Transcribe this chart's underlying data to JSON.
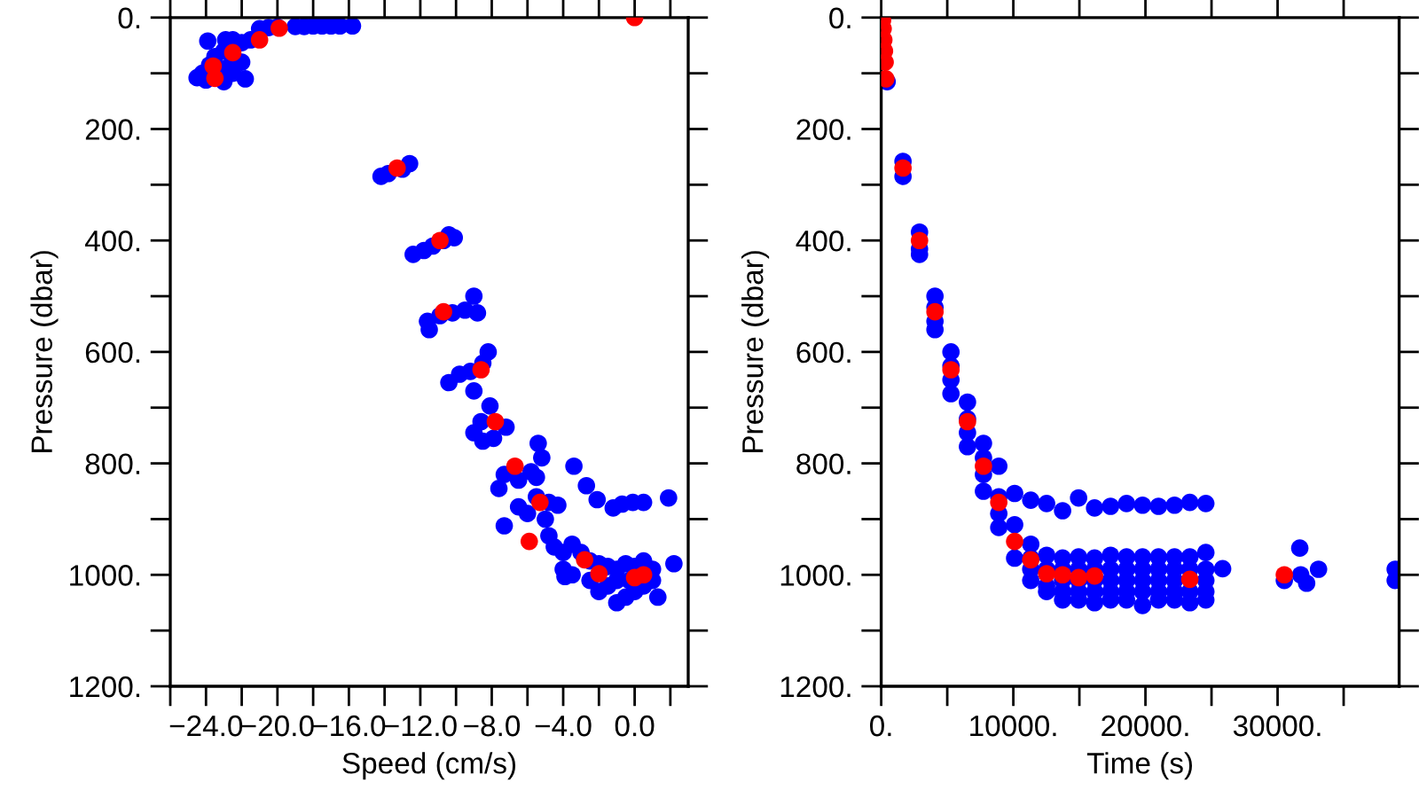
{
  "chart_data": [
    {
      "type": "scatter",
      "xlabel": "Speed (cm/s)",
      "ylabel": "Pressure (dbar)",
      "xlim": [
        -26,
        3
      ],
      "ylim": [
        1200,
        0
      ],
      "marker": "circle",
      "grid": false,
      "xticks": [
        {
          "value": -26,
          "label": null
        },
        {
          "value": -24,
          "label": "−24.0"
        },
        {
          "value": -22,
          "label": null
        },
        {
          "value": -20,
          "label": "−20.0"
        },
        {
          "value": -18,
          "label": null
        },
        {
          "value": -16,
          "label": "−16.0"
        },
        {
          "value": -14,
          "label": null
        },
        {
          "value": -12,
          "label": "−12.0"
        },
        {
          "value": -10,
          "label": null
        },
        {
          "value": -8,
          "label": "−8.0"
        },
        {
          "value": -6,
          "label": null
        },
        {
          "value": -4,
          "label": "−4.0"
        },
        {
          "value": -2,
          "label": null
        },
        {
          "value": 0,
          "label": "0.0"
        },
        {
          "value": 2,
          "label": null
        }
      ],
      "yticks": [
        {
          "value": 0,
          "label": "0."
        },
        {
          "value": 100,
          "label": null
        },
        {
          "value": 200,
          "label": "200."
        },
        {
          "value": 300,
          "label": null
        },
        {
          "value": 400,
          "label": "400."
        },
        {
          "value": 500,
          "label": null
        },
        {
          "value": 600,
          "label": "600."
        },
        {
          "value": 700,
          "label": null
        },
        {
          "value": 800,
          "label": "800."
        },
        {
          "value": 900,
          "label": null
        },
        {
          "value": 1000,
          "label": "1000."
        },
        {
          "value": 1100,
          "label": null
        },
        {
          "value": 1200,
          "label": "1200."
        }
      ],
      "series": [
        {
          "color": "#0000ff",
          "x": [
            -21,
            -20.5,
            -20,
            -19,
            -18.5,
            -18,
            -17.5,
            -17,
            -16.5,
            -15.8,
            -24.5,
            -24,
            -23.8,
            -23,
            -22.9,
            -22.5,
            -22,
            -22,
            -22.5,
            -23,
            -21.8,
            -23.5,
            -22.8,
            -24.2,
            -21.5,
            -23.9,
            -14.2,
            -13.8,
            -13,
            -12.6,
            -12.4,
            -11.8,
            -11.3,
            -10.7,
            -10.4,
            -10.1,
            -11.6,
            -11.5,
            -10.9,
            -10.2,
            -9.5,
            -9.0,
            -8.8,
            -10.4,
            -9.8,
            -9.2,
            -9.0,
            -8.5,
            -8.2,
            -9.0,
            -8.6,
            -8.1,
            -7.9,
            -7.2,
            -8.5,
            -7.6,
            -7.3,
            -6.5,
            -5.8,
            -5.2,
            -5.5,
            -5.4,
            -7.3,
            -6.5,
            -6.0,
            -5.5,
            -4.8,
            -4.3,
            -5.0,
            -4.8,
            -4.5,
            -4.0,
            -3.5,
            -3.0,
            -2.5,
            -2.0,
            -1.5,
            -1.0,
            -0.5,
            0,
            0.5,
            1.0,
            -4.0,
            -3.5,
            -2.5,
            -2.0,
            -1.5,
            -1.0,
            -0.5,
            0,
            0.5,
            1.0,
            1.3,
            -1.0,
            -0.3,
            -3.9,
            2.2,
            -3.4,
            -2.7,
            -2.1,
            -1.2,
            -0.7,
            -0.1,
            0.5,
            1.9
          ],
          "values": [
            20,
            18,
            17,
            16,
            16,
            15,
            15,
            15,
            15,
            15,
            108,
            112,
            85,
            60,
            40,
            40,
            45,
            80,
            100,
            115,
            110,
            70,
            90,
            100,
            40,
            42,
            285,
            280,
            272,
            262,
            425,
            418,
            410,
            400,
            390,
            395,
            545,
            560,
            535,
            530,
            525,
            500,
            530,
            655,
            640,
            635,
            670,
            620,
            600,
            745,
            725,
            697,
            755,
            735,
            760,
            845,
            820,
            830,
            815,
            790,
            825,
            764,
            912,
            878,
            890,
            860,
            870,
            875,
            900,
            930,
            950,
            960,
            945,
            960,
            975,
            980,
            985,
            990,
            980,
            985,
            975,
            990,
            990,
            1000,
            1010,
            1030,
            1020,
            1010,
            1040,
            1030,
            1020,
            1010,
            1040,
            1050,
            1010,
            1003,
            980,
            805,
            840,
            865,
            880,
            873,
            870,
            870,
            862
          ]
        },
        {
          "color": "#ff0000",
          "x": [
            0,
            -19.9,
            -21.0,
            -22.5,
            -23.6,
            -23.5,
            -13.3,
            -10.9,
            -10.7,
            -8.6,
            -7.8,
            -6.7,
            -5.3,
            -5.9,
            -2.8,
            -2.0,
            0,
            0.5
          ],
          "values": [
            0,
            19,
            40,
            63,
            87,
            109,
            270,
            400,
            528,
            632,
            725,
            805,
            870,
            940,
            973,
            998,
            1005,
            1000
          ]
        }
      ]
    },
    {
      "type": "scatter",
      "xlabel": "Time (s)",
      "ylabel": "Pressure (dbar)",
      "xlim": [
        0,
        39200
      ],
      "ylim": [
        1200,
        0
      ],
      "marker": "circle",
      "grid": false,
      "xticks": [
        {
          "value": 0,
          "label": "0."
        },
        {
          "value": 5000,
          "label": null
        },
        {
          "value": 10000,
          "label": "10000."
        },
        {
          "value": 15000,
          "label": null
        },
        {
          "value": 20000,
          "label": "20000."
        },
        {
          "value": 25000,
          "label": null
        },
        {
          "value": 30000,
          "label": "30000."
        },
        {
          "value": 35000,
          "label": null
        }
      ],
      "yticks": [
        {
          "value": 0,
          "label": "0."
        },
        {
          "value": 100,
          "label": null
        },
        {
          "value": 200,
          "label": "200."
        },
        {
          "value": 300,
          "label": null
        },
        {
          "value": 400,
          "label": "400."
        },
        {
          "value": 500,
          "label": null
        },
        {
          "value": 600,
          "label": "600."
        },
        {
          "value": 700,
          "label": null
        },
        {
          "value": 800,
          "label": "800."
        },
        {
          "value": 900,
          "label": null
        },
        {
          "value": 1000,
          "label": "1000."
        },
        {
          "value": 1100,
          "label": null
        },
        {
          "value": 1200,
          "label": "1200."
        }
      ],
      "series": [
        {
          "color": "#0000ff",
          "x": [
            450,
            1650,
            1650,
            2900,
            2900,
            2900,
            4070,
            4070,
            4070,
            4070,
            5280,
            5280,
            5280,
            5280,
            6530,
            6530,
            6530,
            6530,
            7740,
            7740,
            7740,
            7740,
            8900,
            8900,
            8900,
            8900,
            10100,
            10100,
            10100,
            11320,
            11320,
            11320,
            11320,
            11320,
            12520,
            12520,
            12520,
            12520,
            12520,
            13730,
            13730,
            13730,
            13730,
            13730,
            13730,
            14940,
            14940,
            14940,
            14940,
            14940,
            14940,
            16150,
            16150,
            16150,
            16150,
            16150,
            16150,
            17360,
            17360,
            17360,
            17360,
            17360,
            17360,
            18570,
            18570,
            18570,
            18570,
            18570,
            18570,
            19780,
            19780,
            19780,
            19780,
            19780,
            19780,
            20990,
            20990,
            20990,
            20990,
            20990,
            20990,
            22200,
            22200,
            22200,
            22200,
            22200,
            22200,
            23360,
            23360,
            23360,
            23360,
            23360,
            24570,
            24570,
            24570,
            24570,
            24570,
            24570,
            25840,
            30510,
            31680,
            31750,
            32200,
            33100,
            38900,
            38900
          ],
          "values": [
            115,
            258,
            285,
            385,
            415,
            425,
            500,
            520,
            545,
            560,
            600,
            625,
            650,
            675,
            690,
            720,
            745,
            770,
            764,
            790,
            820,
            850,
            805,
            860,
            890,
            915,
            854,
            910,
            970,
            866,
            945,
            970,
            990,
            1010,
            872,
            965,
            990,
            1020,
            1030,
            885,
            970,
            990,
            1010,
            1030,
            1045,
            862,
            968,
            990,
            1010,
            1030,
            1045,
            880,
            970,
            990,
            1010,
            1030,
            1050,
            877,
            965,
            990,
            1010,
            1030,
            1045,
            872,
            968,
            990,
            1010,
            1030,
            1045,
            875,
            968,
            990,
            1010,
            1030,
            1055,
            877,
            968,
            990,
            1010,
            1030,
            1045,
            875,
            968,
            990,
            1010,
            1030,
            1045,
            870,
            968,
            990,
            1030,
            1050,
            872,
            960,
            990,
            1010,
            1030,
            1045,
            989,
            1010,
            952,
            1000,
            1015,
            990,
            990,
            1010
          ]
        },
        {
          "color": "#ff0000",
          "x": [
            100,
            150,
            200,
            250,
            300,
            350,
            1650,
            2900,
            4070,
            5280,
            6530,
            7740,
            8900,
            10100,
            11320,
            12520,
            13730,
            14940,
            16150,
            23360,
            30510
          ],
          "values": [
            5,
            20,
            40,
            60,
            80,
            110,
            270,
            400,
            528,
            632,
            725,
            805,
            870,
            940,
            973,
            998,
            1000,
            1005,
            1002,
            1008,
            1000
          ]
        }
      ]
    }
  ]
}
